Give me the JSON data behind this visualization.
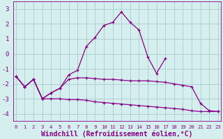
{
  "x": [
    0,
    1,
    2,
    3,
    4,
    5,
    6,
    7,
    8,
    9,
    10,
    11,
    12,
    13,
    14,
    15,
    16,
    17,
    18,
    19,
    20,
    21,
    22,
    23
  ],
  "line1_x": [
    0,
    1,
    2,
    3,
    4,
    5,
    6,
    7,
    8,
    9,
    10,
    11,
    12,
    13,
    14,
    15,
    16,
    17
  ],
  "line1_y": [
    -1.5,
    -2.2,
    -1.7,
    -3.0,
    -2.6,
    -2.3,
    -1.4,
    -1.1,
    0.5,
    1.1,
    1.9,
    2.1,
    2.8,
    2.1,
    1.6,
    -0.2,
    -1.3,
    -0.3
  ],
  "line2": [
    -1.5,
    -2.2,
    -1.7,
    -3.0,
    -2.6,
    -2.3,
    -1.7,
    -1.6,
    -1.6,
    -1.65,
    -1.7,
    -1.7,
    -1.75,
    -1.8,
    -1.8,
    -1.8,
    -1.85,
    -1.9,
    -2.0,
    -2.1,
    -2.2,
    -3.3,
    -3.8,
    -3.85
  ],
  "line3": [
    -1.5,
    -2.2,
    -1.7,
    -3.0,
    -3.0,
    -3.0,
    -3.05,
    -3.05,
    -3.1,
    -3.2,
    -3.25,
    -3.3,
    -3.35,
    -3.4,
    -3.45,
    -3.5,
    -3.55,
    -3.6,
    -3.65,
    -3.7,
    -3.8,
    -3.85,
    -3.85,
    -3.85
  ],
  "line_color": "#880088",
  "bg_color": "#d5eeee",
  "grid_color": "#aacccc",
  "text_color": "#880088",
  "ylim": [
    -4.5,
    3.5
  ],
  "yticks": [
    -4,
    -3,
    -2,
    -1,
    0,
    1,
    2,
    3
  ],
  "xlim": [
    -0.3,
    23.3
  ],
  "xlabel": "Windchill (Refroidissement éolien,°C)"
}
